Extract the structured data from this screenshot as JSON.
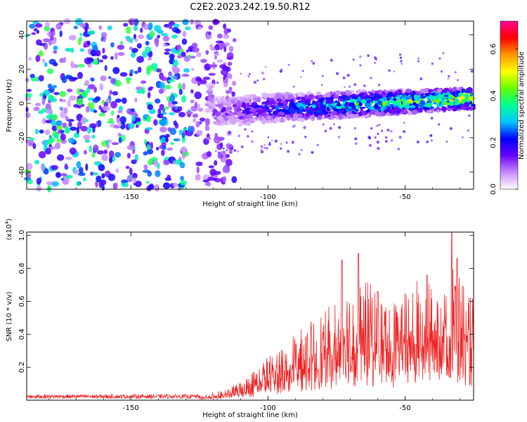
{
  "title": "C2E2.2023.242.19.50.R12",
  "chart_data": [
    {
      "type": "heatmap",
      "name": "spectrogram",
      "xlabel": "Height of straight line (km)",
      "ylabel": "Frequency (Hz)",
      "xlim": [
        -188,
        -25
      ],
      "ylim": [
        -50,
        48
      ],
      "xticks": [
        -150,
        -100,
        -50
      ],
      "yticks": [
        -40,
        -20,
        0,
        20,
        40
      ],
      "colorbar": {
        "label": "Normalized spectral amplitude",
        "range": [
          0.0,
          0.72
        ],
        "ticks": [
          0.0,
          0.2,
          0.4,
          0.6
        ],
        "colormap": [
          "#ffffff",
          "#c78cff",
          "#6a00ff",
          "#0000ff",
          "#00c8ff",
          "#00ff96",
          "#64ff00",
          "#ffff00",
          "#ff9600",
          "#ff0000",
          "#ff0096"
        ]
      },
      "description_of_data": {
        "noise_region_x": [
          -188,
          -120
        ],
        "band_start_x": -120,
        "band_center_hz": [
          {
            "x": -120,
            "y": -5
          },
          {
            "x": -100,
            "y": -3
          },
          {
            "x": -75,
            "y": -1
          },
          {
            "x": -50,
            "y": 1
          },
          {
            "x": -25,
            "y": 3
          }
        ]
      }
    },
    {
      "type": "line",
      "name": "snr",
      "xlabel": "Height of straight line (km)",
      "ylabel": "SNR (10 * v/v)",
      "scale_label": "(x10^4)",
      "xlim": [
        -188,
        -25
      ],
      "ylim": [
        0,
        1.02
      ],
      "xticks": [
        -150,
        -100,
        -50
      ],
      "yticks": [
        0.2,
        0.4,
        0.6,
        0.8,
        1.0
      ],
      "color": "#ee2222",
      "envelope": [
        {
          "x": -188,
          "y": 0.02
        },
        {
          "x": -125,
          "y": 0.02
        },
        {
          "x": -115,
          "y": 0.05
        },
        {
          "x": -108,
          "y": 0.1
        },
        {
          "x": -100,
          "y": 0.2
        },
        {
          "x": -90,
          "y": 0.3
        },
        {
          "x": -80,
          "y": 0.4
        },
        {
          "x": -72,
          "y": 0.5
        },
        {
          "x": -65,
          "y": 0.55
        },
        {
          "x": -55,
          "y": 0.45
        },
        {
          "x": -45,
          "y": 0.55
        },
        {
          "x": -35,
          "y": 0.65
        },
        {
          "x": -25,
          "y": 0.5
        }
      ],
      "peaks": [
        {
          "x": -73,
          "y": 0.85
        },
        {
          "x": -67,
          "y": 0.89
        },
        {
          "x": -33,
          "y": 1.02
        },
        {
          "x": -31,
          "y": 0.86
        },
        {
          "x": -42,
          "y": 0.76
        },
        {
          "x": -60,
          "y": 0.66
        }
      ]
    }
  ]
}
